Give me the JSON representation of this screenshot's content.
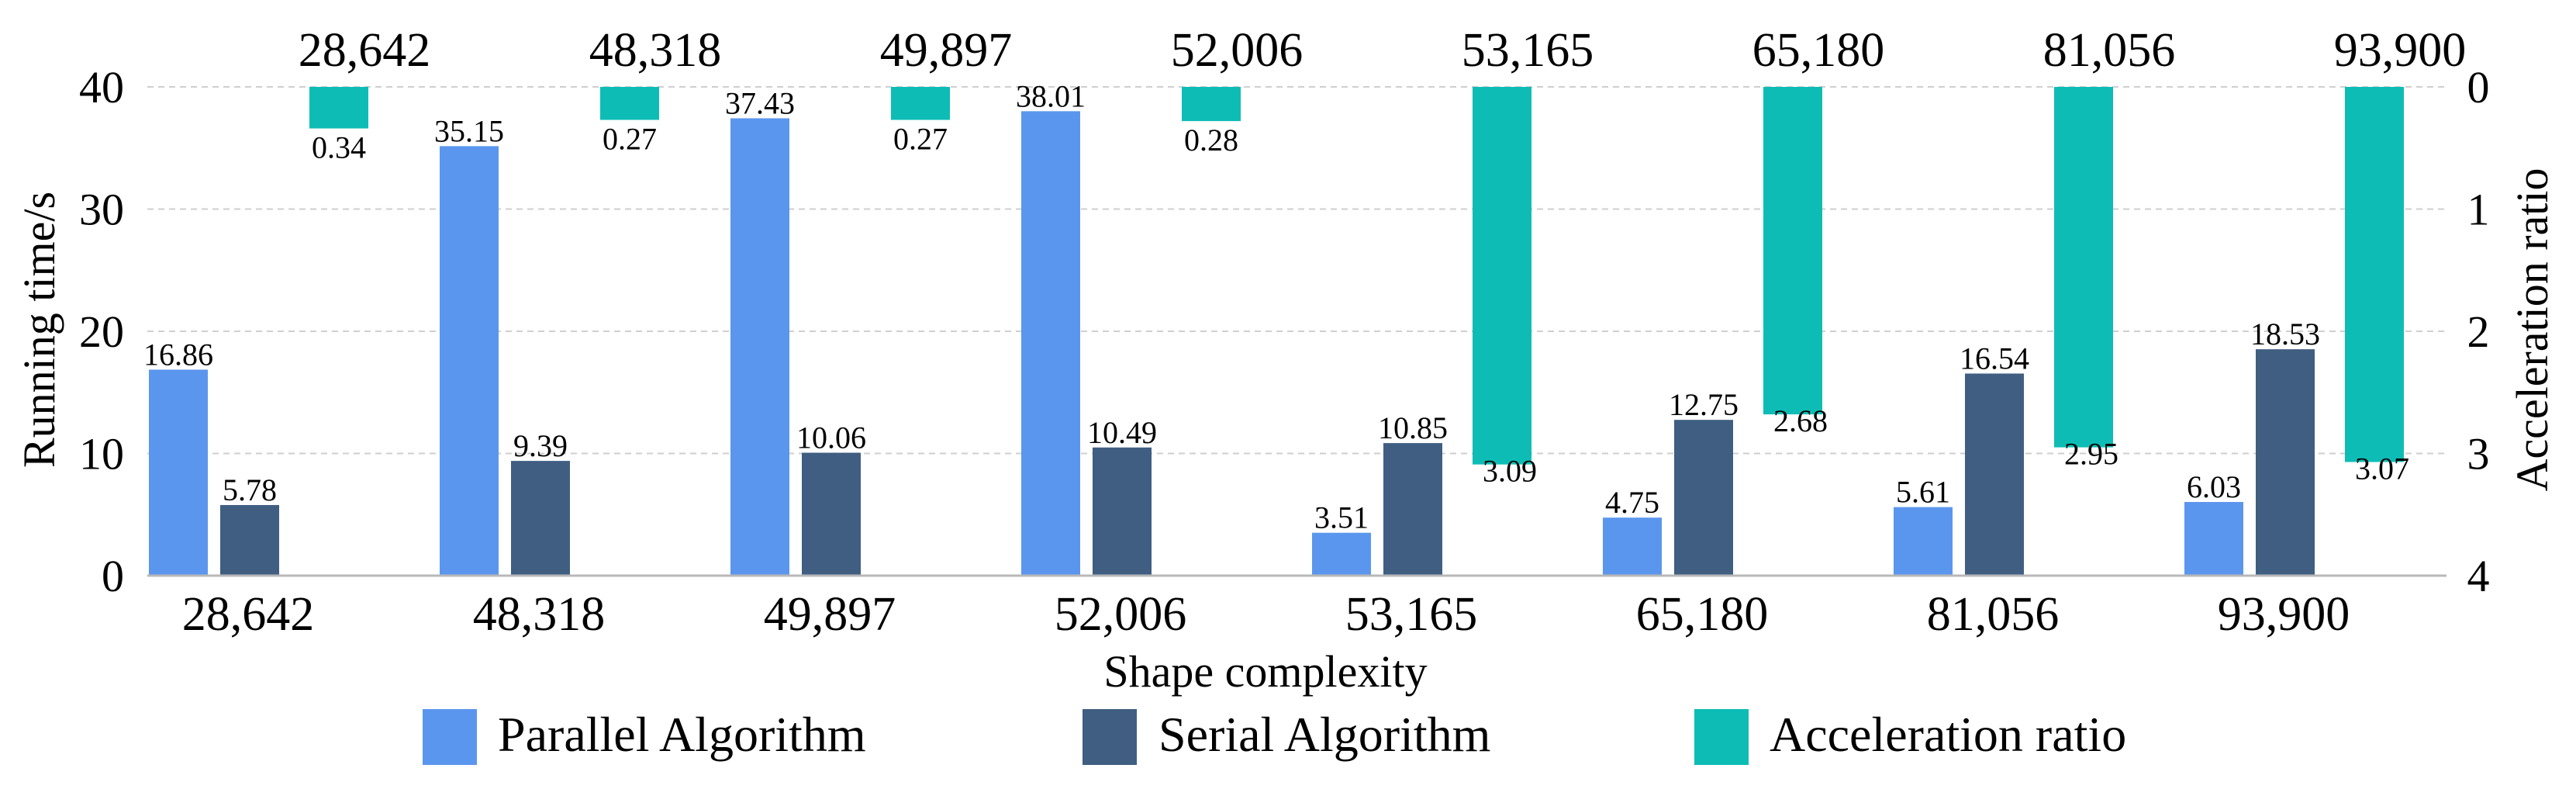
{
  "chart_data": {
    "type": "bar",
    "title": "",
    "xlabel": "Shape complexity",
    "ylabel": "Running time/s",
    "y2label": "Acceleration ratio",
    "ylim": [
      0,
      40
    ],
    "y2lim": [
      0,
      4
    ],
    "y2_inverted": true,
    "grid": true,
    "legend_position": "bottom",
    "categories": [
      "28,642",
      "48,318",
      "49,897",
      "52,006",
      "53,165",
      "65,180",
      "81,056",
      "93,900"
    ],
    "top_labels": [
      "28,642",
      "48,318",
      "49,897",
      "52,006",
      "53,165",
      "65,180",
      "81,056",
      "93,900"
    ],
    "yticks": [
      {
        "value": 0,
        "label": "0"
      },
      {
        "value": 10,
        "label": "10"
      },
      {
        "value": 20,
        "label": "20"
      },
      {
        "value": 30,
        "label": "30"
      },
      {
        "value": 40,
        "label": "40"
      }
    ],
    "y2ticks": [
      {
        "value": 0,
        "label": "0"
      },
      {
        "value": 1,
        "label": "1"
      },
      {
        "value": 2,
        "label": "2"
      },
      {
        "value": 3,
        "label": "3"
      },
      {
        "value": 4,
        "label": "4"
      }
    ],
    "series": [
      {
        "name": "Parallel Algorithm",
        "axis": "left",
        "color": "#5b96ee",
        "values": [
          16.86,
          35.15,
          37.43,
          38.01,
          3.51,
          4.75,
          5.61,
          6.03
        ],
        "labels": [
          "16.86",
          "35.15",
          "37.43",
          "38.01",
          "3.51",
          "4.75",
          "5.61",
          "6.03"
        ]
      },
      {
        "name": "Serial Algorithm",
        "axis": "left",
        "color": "#3f5e82",
        "values": [
          5.78,
          9.39,
          10.06,
          10.49,
          10.85,
          12.75,
          16.54,
          18.53
        ],
        "labels": [
          "5.78",
          "9.39",
          "10.06",
          "10.49",
          "10.85",
          "12.75",
          "16.54",
          "18.53"
        ]
      },
      {
        "name": "Acceleration ratio",
        "axis": "right",
        "color": "#0dbdb5",
        "values": [
          0.34,
          0.27,
          0.27,
          0.28,
          3.09,
          2.68,
          2.95,
          3.07
        ],
        "labels": [
          "0.34",
          "0.27",
          "0.27",
          "0.28",
          "3.09",
          "2.68",
          "2.95",
          "3.07"
        ]
      }
    ]
  }
}
